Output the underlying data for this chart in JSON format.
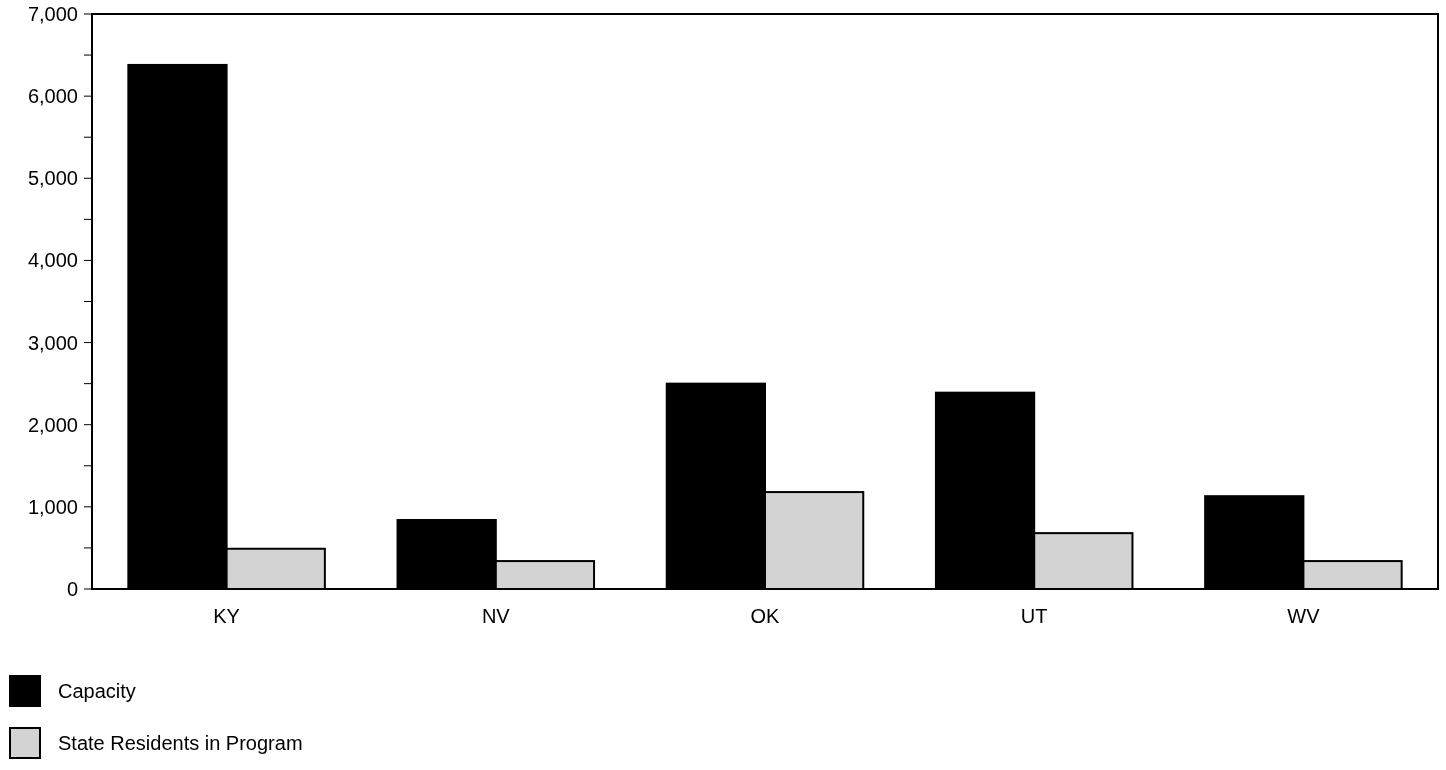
{
  "chart_data": {
    "type": "bar",
    "categories": [
      "KY",
      "NV",
      "OK",
      "UT",
      "WV"
    ],
    "series": [
      {
        "name": "Capacity",
        "color": "#000000",
        "values": [
          6380,
          840,
          2500,
          2390,
          1130
        ]
      },
      {
        "name": "State Residents in Program",
        "color": "#d3d3d3",
        "values": [
          490,
          340,
          1180,
          680,
          340
        ]
      }
    ],
    "ylim": [
      0,
      7000
    ],
    "yticks": [
      0,
      {
        "value": 500,
        "label": null
      },
      {
        "value": 1000,
        "label": "1,000"
      },
      {
        "value": 1500,
        "label": null
      },
      {
        "value": 2000,
        "label": "2,000"
      },
      {
        "value": 2500,
        "label": null
      },
      {
        "value": 3000,
        "label": "3,000"
      },
      {
        "value": 3500,
        "label": null
      },
      {
        "value": 4000,
        "label": "4,000"
      },
      {
        "value": 4500,
        "label": null
      },
      {
        "value": 5000,
        "label": "5,000"
      },
      {
        "value": 5500,
        "label": null
      },
      {
        "value": 6000,
        "label": "6,000"
      },
      {
        "value": 6500,
        "label": null
      },
      {
        "value": 7000,
        "label": "7,000"
      }
    ],
    "grid": false,
    "legend": "bottom left"
  }
}
